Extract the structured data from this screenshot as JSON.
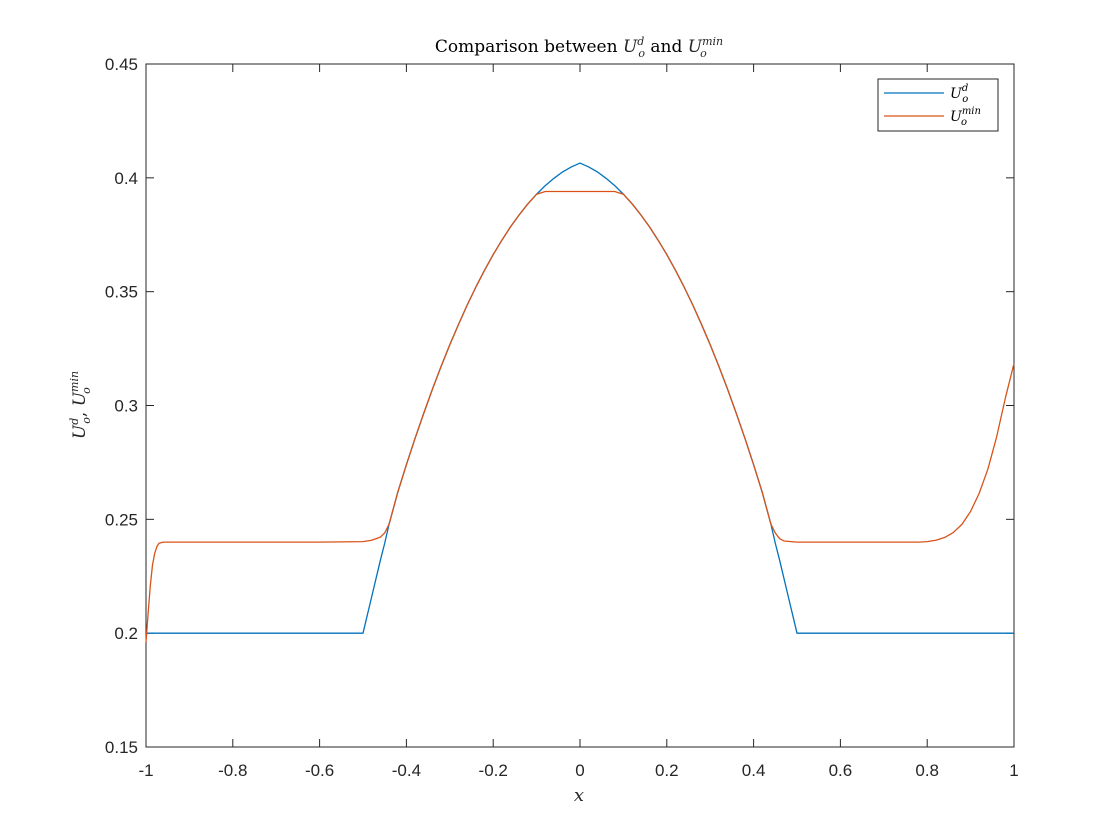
{
  "chart_data": {
    "type": "line",
    "title": {
      "prefix": "Comparison between ",
      "mid": " and ",
      "sym1": "U",
      "sub1": "o",
      "sup1": "d",
      "sym2": "U",
      "sub2": "o",
      "sup2": "min"
    },
    "xlabel": "x",
    "ylabel": {
      "sym": "U",
      "sub": "o",
      "sup1": "d",
      "sep": ", ",
      "sup2": "min"
    },
    "xlim": [
      -1,
      1
    ],
    "ylim": [
      0.15,
      0.45
    ],
    "xticks": [
      -1,
      -0.8,
      -0.6,
      -0.4,
      -0.2,
      0,
      0.2,
      0.4,
      0.6,
      0.8,
      1
    ],
    "yticks": [
      0.15,
      0.2,
      0.25,
      0.3,
      0.35,
      0.4,
      0.45
    ],
    "xtick_labels": [
      "-1",
      "-0.8",
      "-0.6",
      "-0.4",
      "-0.2",
      "0",
      "0.2",
      "0.4",
      "0.6",
      "0.8",
      "1"
    ],
    "ytick_labels": [
      "0.15",
      "0.2",
      "0.25",
      "0.3",
      "0.35",
      "0.4",
      "0.45"
    ],
    "grid": false,
    "legend_position": "top-right",
    "series": [
      {
        "name": {
          "sym": "U",
          "sub": "o",
          "sup": "d"
        },
        "color": "#0072BD",
        "x": [
          -1,
          -0.5,
          -0.48,
          -0.46,
          -0.45,
          -0.44,
          -0.42,
          -0.4,
          -0.38,
          -0.36,
          -0.34,
          -0.32,
          -0.3,
          -0.28,
          -0.26,
          -0.24,
          -0.22,
          -0.2,
          -0.18,
          -0.16,
          -0.14,
          -0.12,
          -0.1,
          -0.08,
          -0.06,
          -0.04,
          -0.02,
          0,
          0.02,
          0.04,
          0.06,
          0.08,
          0.1,
          0.12,
          0.14,
          0.16,
          0.18,
          0.2,
          0.22,
          0.24,
          0.26,
          0.28,
          0.3,
          0.32,
          0.34,
          0.36,
          0.38,
          0.4,
          0.42,
          0.44,
          0.45,
          0.46,
          0.48,
          0.5,
          1
        ],
        "y": [
          0.2,
          0.2,
          0.216,
          0.232,
          0.2395,
          0.2478,
          0.2618,
          0.274,
          0.2856,
          0.2966,
          0.3072,
          0.3172,
          0.3267,
          0.3356,
          0.3441,
          0.352,
          0.3594,
          0.3663,
          0.3726,
          0.3785,
          0.3838,
          0.3886,
          0.3928,
          0.3966,
          0.3998,
          0.4026,
          0.4048,
          0.4065,
          0.4048,
          0.4026,
          0.3998,
          0.3966,
          0.3928,
          0.3886,
          0.3838,
          0.3785,
          0.3726,
          0.3663,
          0.3594,
          0.352,
          0.3441,
          0.3356,
          0.3267,
          0.3172,
          0.3072,
          0.2966,
          0.2856,
          0.274,
          0.2618,
          0.2478,
          0.2395,
          0.232,
          0.216,
          0.2,
          0.2
        ]
      },
      {
        "name": {
          "sym": "U",
          "sub": "o",
          "sup": "min"
        },
        "color": "#D95319",
        "x": [
          -1,
          -0.995,
          -0.99,
          -0.985,
          -0.98,
          -0.975,
          -0.97,
          -0.96,
          -0.95,
          -0.9,
          -0.8,
          -0.6,
          -0.5,
          -0.48,
          -0.46,
          -0.45,
          -0.44,
          -0.42,
          -0.4,
          -0.38,
          -0.36,
          -0.34,
          -0.32,
          -0.3,
          -0.28,
          -0.26,
          -0.24,
          -0.22,
          -0.2,
          -0.18,
          -0.16,
          -0.14,
          -0.12,
          -0.1,
          -0.08,
          0,
          0.08,
          0.1,
          0.12,
          0.14,
          0.16,
          0.18,
          0.2,
          0.22,
          0.24,
          0.26,
          0.28,
          0.3,
          0.32,
          0.34,
          0.36,
          0.38,
          0.4,
          0.42,
          0.44,
          0.45,
          0.46,
          0.47,
          0.5,
          0.6,
          0.7,
          0.78,
          0.8,
          0.82,
          0.84,
          0.86,
          0.88,
          0.9,
          0.92,
          0.94,
          0.96,
          0.98,
          1
        ],
        "y": [
          0.196,
          0.209,
          0.221,
          0.23,
          0.235,
          0.238,
          0.2395,
          0.24,
          0.24,
          0.24,
          0.24,
          0.24,
          0.2402,
          0.2408,
          0.2422,
          0.244,
          0.2478,
          0.2618,
          0.274,
          0.2856,
          0.2966,
          0.3072,
          0.3172,
          0.3267,
          0.3356,
          0.3441,
          0.352,
          0.3594,
          0.3663,
          0.3726,
          0.3785,
          0.3838,
          0.3886,
          0.3928,
          0.394,
          0.394,
          0.394,
          0.3928,
          0.3886,
          0.3838,
          0.3785,
          0.3726,
          0.3663,
          0.3594,
          0.352,
          0.3441,
          0.3356,
          0.3267,
          0.3172,
          0.3072,
          0.2966,
          0.2856,
          0.274,
          0.2618,
          0.2478,
          0.244,
          0.2415,
          0.2405,
          0.24,
          0.24,
          0.24,
          0.24,
          0.2402,
          0.2408,
          0.242,
          0.2442,
          0.2478,
          0.2535,
          0.2615,
          0.2722,
          0.2862,
          0.3032,
          0.3185
        ]
      }
    ]
  }
}
